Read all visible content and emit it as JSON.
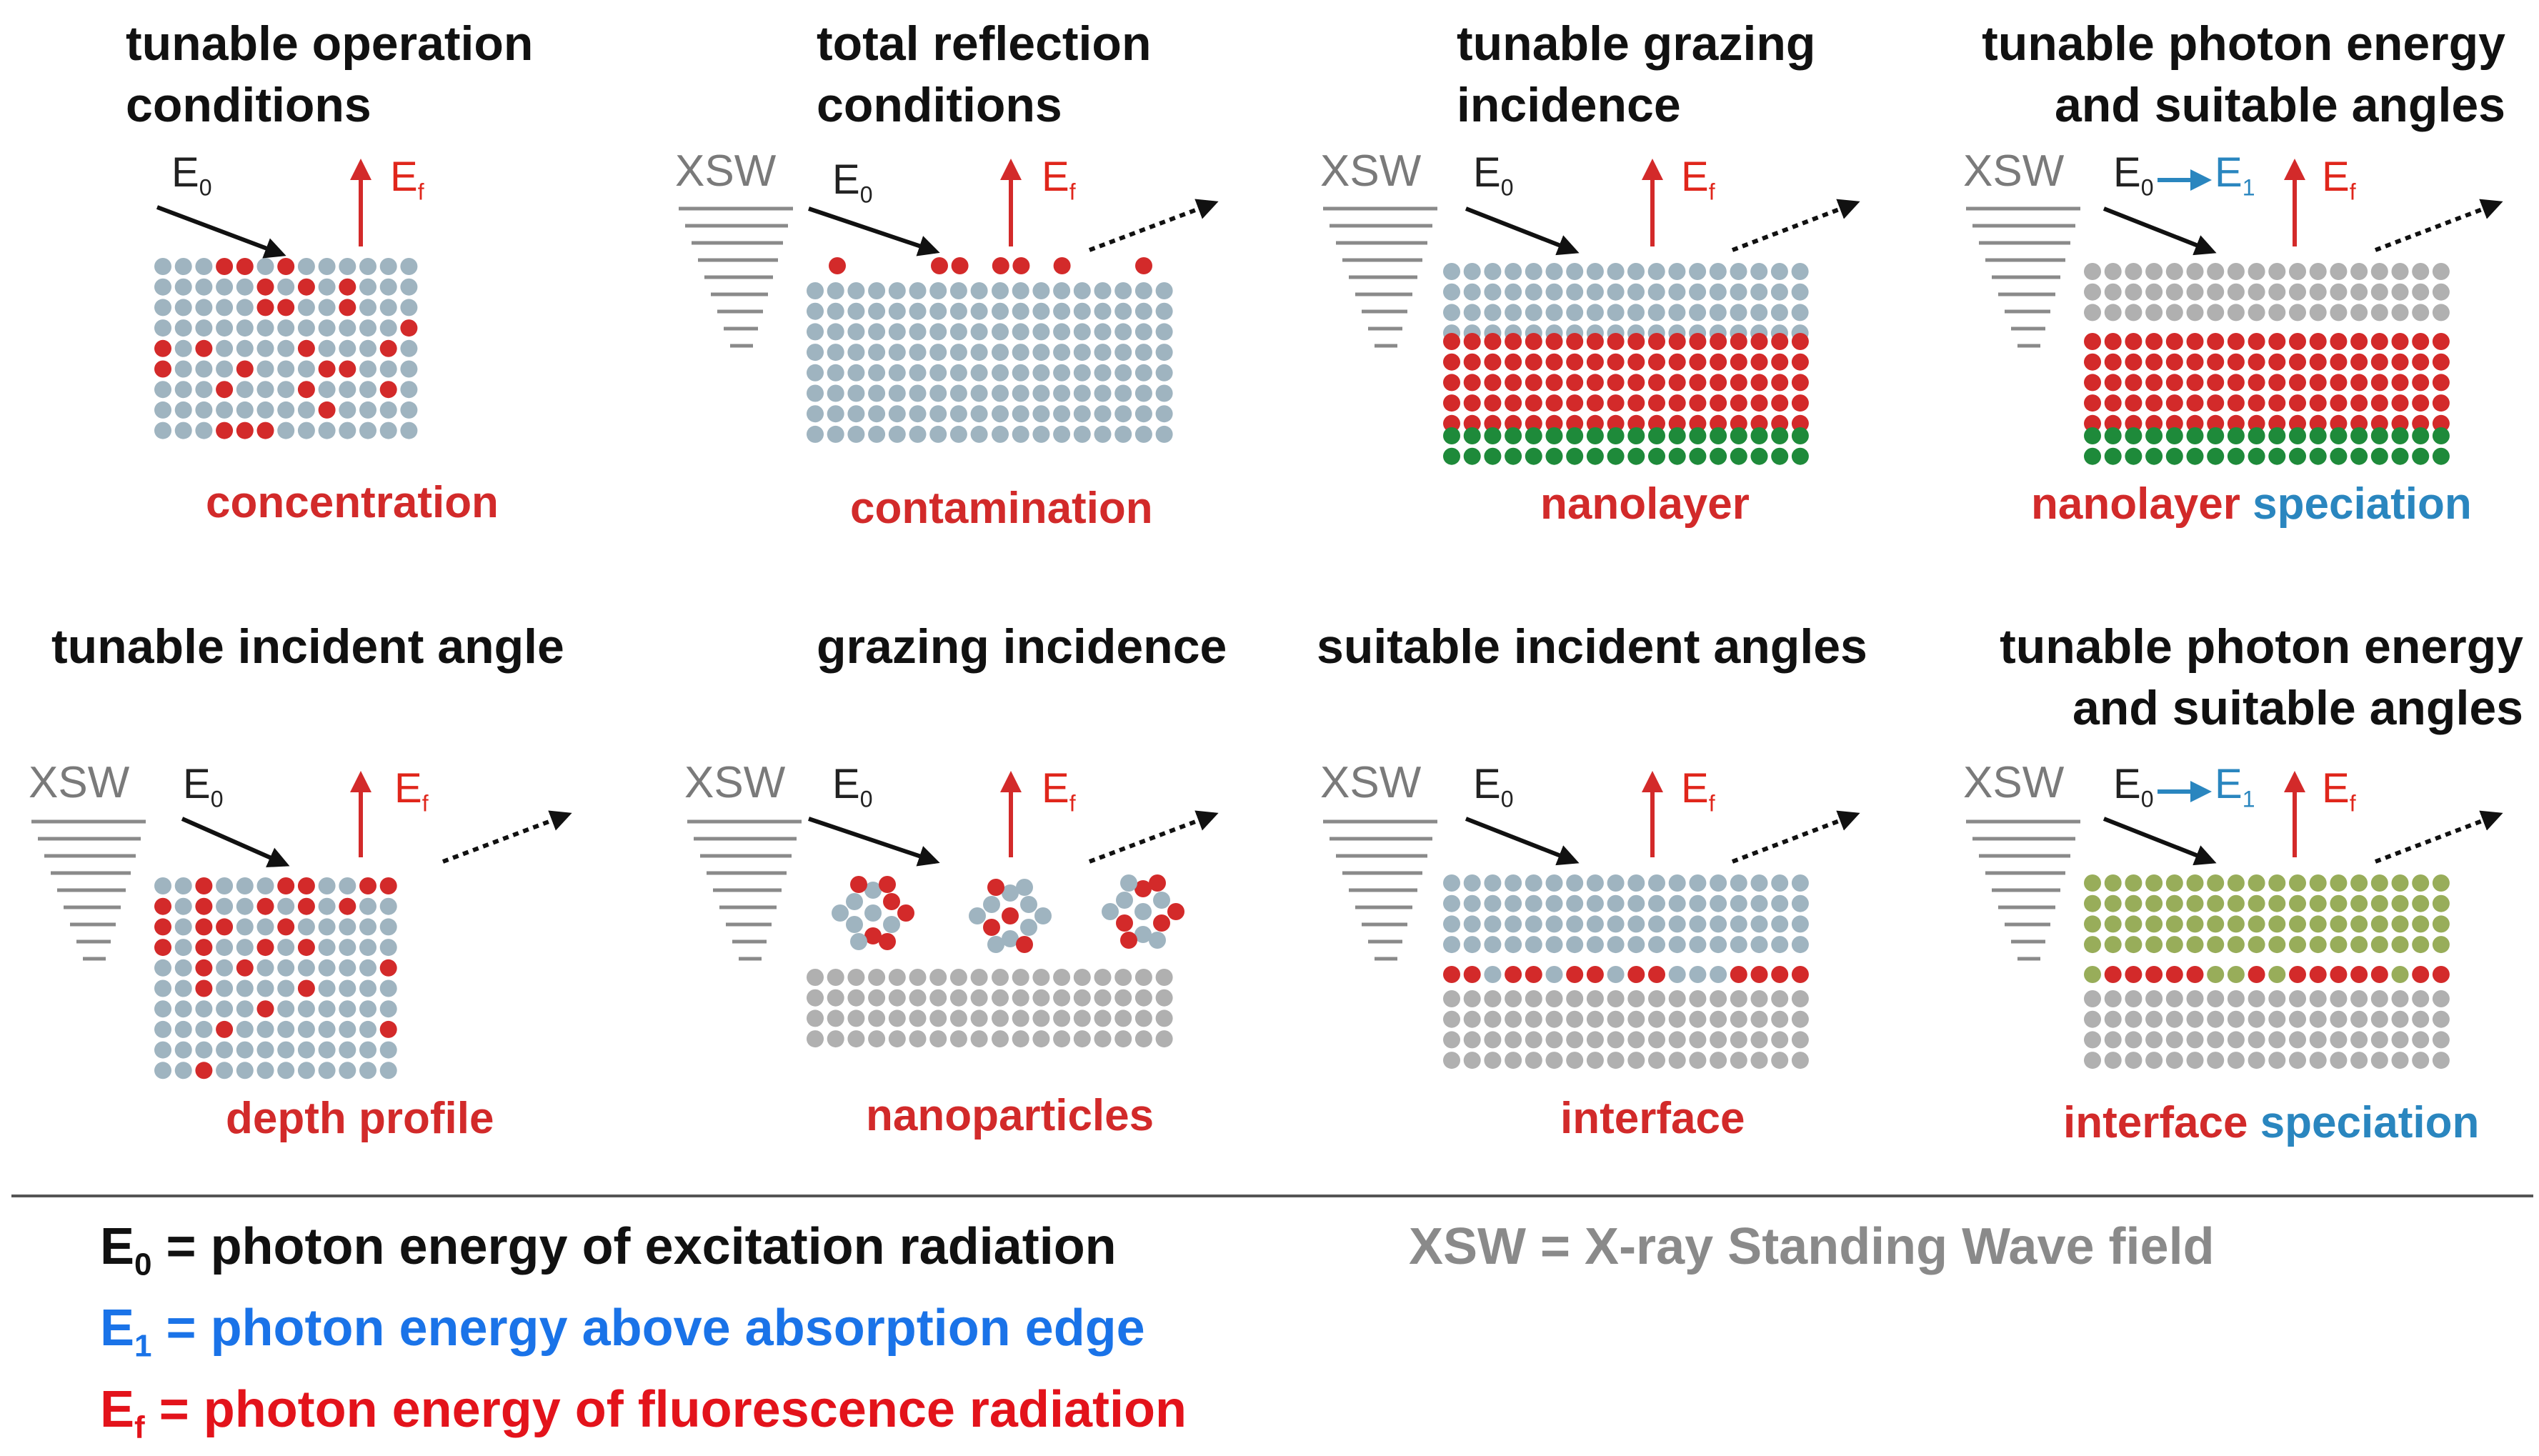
{
  "colors": {
    "substrate": "#9fb4c0",
    "element": "#d32a2a",
    "gray": "#b0b0b0",
    "green": "#1e8a3a",
    "olive": "#98ad5a",
    "arrow_black": "#111111",
    "arrow_red": "#d32a2a",
    "arrow_blue": "#2a86bf"
  },
  "panels": [
    {
      "title_line1": "tunable operation",
      "title_line2": "conditions",
      "caption": "concentration",
      "caption_extra": ""
    },
    {
      "title_line1": "total reflection",
      "title_line2": "conditions",
      "caption": "contamination",
      "caption_extra": ""
    },
    {
      "title_line1": "tunable grazing",
      "title_line2": "incidence",
      "caption": "nanolayer",
      "caption_extra": ""
    },
    {
      "title_line1": "tunable photon energy",
      "title_line2": "and suitable angles",
      "caption": "nanolayer",
      "caption_extra": "speciation"
    },
    {
      "title_line1": "tunable incident angle",
      "title_line2": "",
      "caption": "depth profile",
      "caption_extra": ""
    },
    {
      "title_line1": "grazing incidence",
      "title_line2": "",
      "caption": "nanoparticles",
      "caption_extra": ""
    },
    {
      "title_line1": "suitable incident angles",
      "title_line2": "",
      "caption": "interface",
      "caption_extra": ""
    },
    {
      "title_line1": "tunable photon energy",
      "title_line2": "and suitable angles",
      "caption": "interface",
      "caption_extra": "speciation"
    }
  ],
  "labels": {
    "xsw": "XSW",
    "e0_main": "E",
    "e0_sub": "0",
    "ef_main": "E",
    "ef_sub": "f",
    "e1_main": "E",
    "e1_sub": "1"
  },
  "legend": {
    "e0_sym": "E",
    "e0_sub": "0",
    "e0_text": " = photon energy of excitation radiation",
    "e1_sym": "E",
    "e1_sub": "1",
    "e1_text": " = photon energy above absorption edge",
    "ef_sym": "E",
    "ef_sub": "f",
    "ef_text": " = photon energy of fluorescence radiation",
    "xsw_text": "XSW = X-ray Standing Wave field"
  }
}
